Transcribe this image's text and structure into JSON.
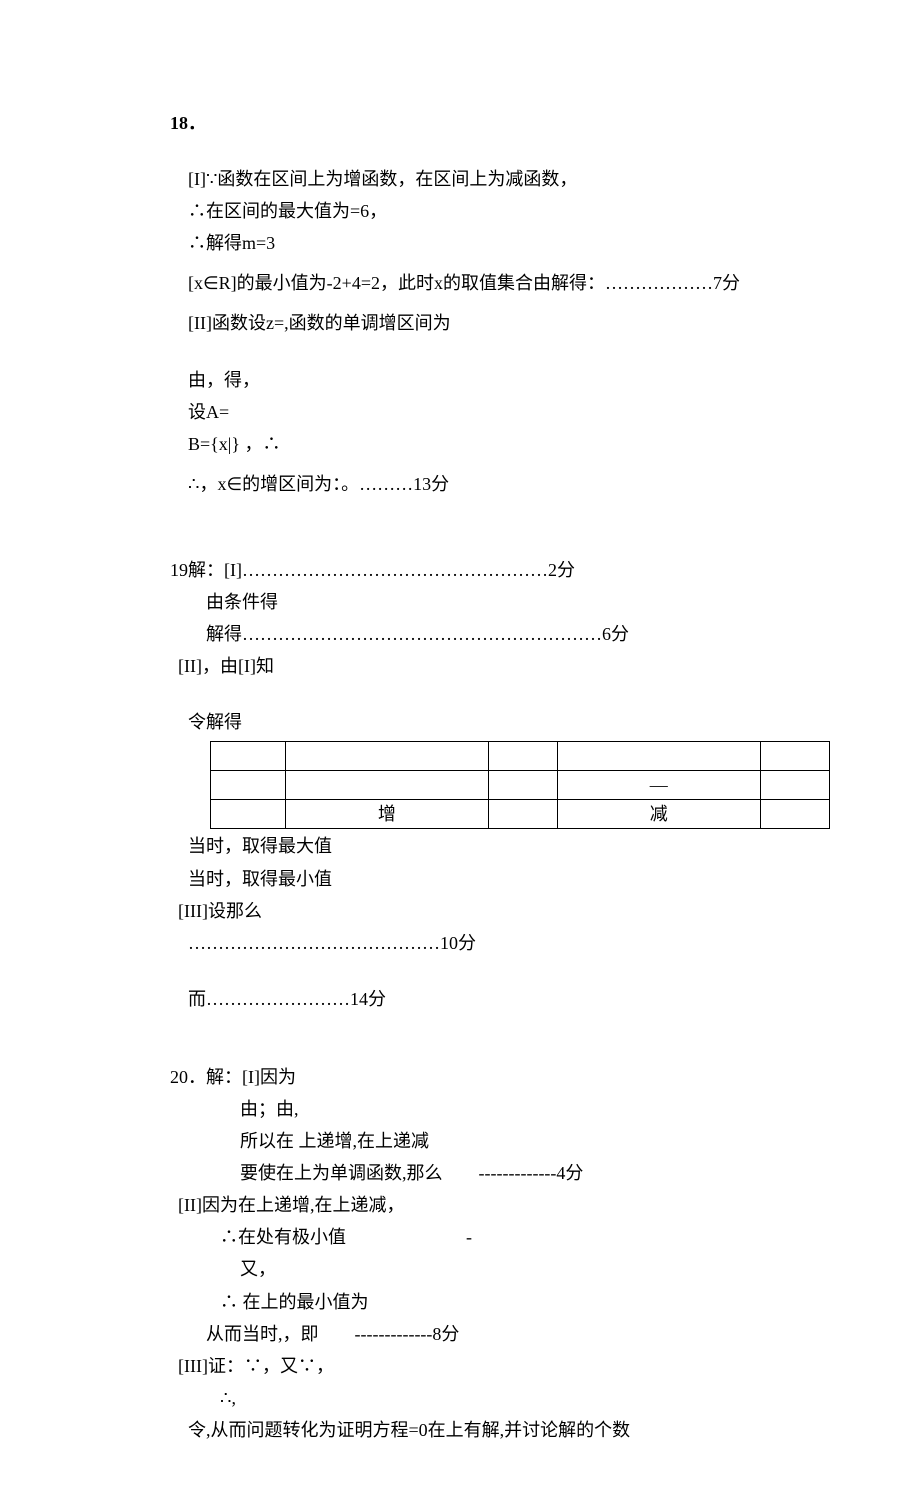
{
  "q18": {
    "head": "18．",
    "p1_l1": "[I]∵函数在区间上为增函数，在区间上为减函数，",
    "p1_l2": "∴在区间的最大值为=6，",
    "p1_l3": "∴解得m=3",
    "p2_prefix": "[x∈R]的最小值为-2+4=2，此时x的取值集合由解得：",
    "p2_dots": "  ………………7分",
    "p3": "[II]函数设z=,函数的单调增区间为",
    "p4_l1": "由，得，",
    "p4_l2": "设A=",
    "p4_l3": "B={x|} ，∴",
    "p5": "∴，x∈的增区间为：。………13分"
  },
  "q19": {
    "l1_prefix": "19解：[I]",
    "l1_dots": "  ……………………………………………2分",
    "l2": "由条件得",
    "l3_prefix": "解得",
    "l3_dots": "  ……………………………………………………6分",
    "l4": "[II]，由[I]知",
    "l5": "令解得",
    "table": {
      "r2c4": "—",
      "r3c2": "增",
      "r3c4": "减"
    },
    "l6": "当时，取得最大值",
    "l7": "当时，取得最小值",
    "l8": "[III]设那么",
    "l9": "……………………………………10分",
    "l10_prefix": "而",
    "l10_dots": "  ……………………14分"
  },
  "q20": {
    "l1": "20．解：[I]因为",
    "l2": "由；由,",
    "l3": "所以在 上递增,在上递减",
    "l4_prefix": "要使在上为单调函数,那么",
    "l4_dash": "-------------4分",
    "l5": "[II]因为在上递增,在上递减，",
    "l6_prefix": "∴在处有极小值",
    "l6_dash": "-",
    "l7": "又，",
    "l8": "∴ 在上的最小值为",
    "l9_prefix": "从而当时,，即",
    "l9_dash": "-------------8分",
    "l10": "[III]证：∵，又∵，",
    "l11": "∴,",
    "l12": "令,从而问题转化为证明方程=0在上有解,并讨论解的个数"
  }
}
